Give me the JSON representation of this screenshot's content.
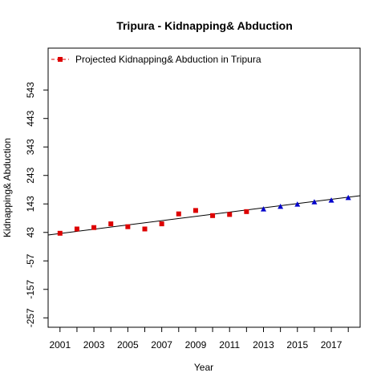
{
  "chart_data": {
    "type": "scatter",
    "title": "Tripura  -  Kidnapping& Abduction",
    "xlabel": "Year",
    "ylabel": "Kidnapping& Abduction",
    "xlim": [
      2000.3,
      2018.7
    ],
    "ylim": [
      -290,
      690
    ],
    "x_ticks": [
      2001,
      2003,
      2005,
      2007,
      2009,
      2011,
      2013,
      2015,
      2017
    ],
    "y_ticks": [
      -257,
      -157,
      -57,
      43,
      143,
      243,
      343,
      443,
      543
    ],
    "grid": false,
    "legend": {
      "position": "top-left",
      "entries": [
        {
          "label": "Projected  Kidnapping& Abduction  in  Tripura",
          "color": "#dd0000",
          "marker": "square",
          "line": "dashed"
        }
      ]
    },
    "series": [
      {
        "name": "Projected  Kidnapping& Abduction  in  Tripura",
        "marker": "square",
        "color": "#dd0000",
        "x": [
          2001,
          2002,
          2003,
          2004,
          2005,
          2006,
          2007,
          2008,
          2009,
          2010,
          2011,
          2012
        ],
        "y": [
          40,
          55,
          60,
          73,
          63,
          55,
          73,
          108,
          120,
          102,
          106,
          116
        ]
      },
      {
        "marker": "triangle",
        "color": "#0000cc",
        "x": [
          2013,
          2014,
          2015,
          2016,
          2017,
          2018
        ],
        "y": [
          125,
          134,
          142,
          150,
          156,
          165
        ]
      }
    ],
    "trend_line": {
      "color": "#000000",
      "x": [
        2000.3,
        2018.7
      ],
      "y": [
        34,
        172
      ]
    }
  }
}
